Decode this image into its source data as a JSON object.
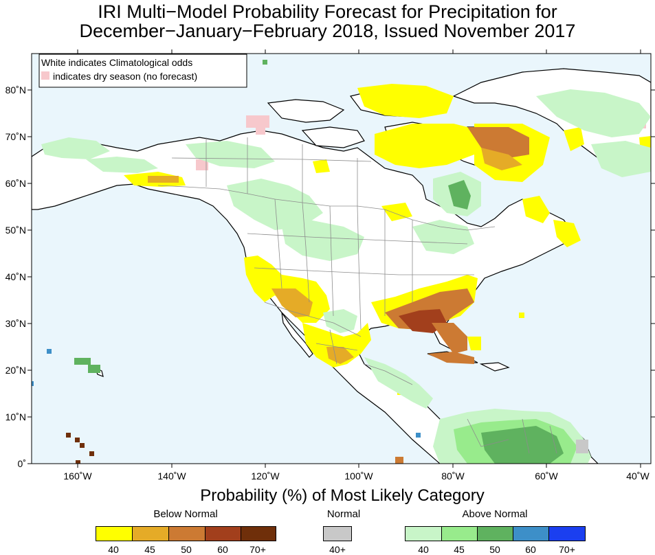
{
  "title": {
    "line1": "IRI Multi−Model Probability Forecast for Precipitation for",
    "line2": "December−January−February 2018, Issued November 2017"
  },
  "map": {
    "notes": {
      "line1": "White indicates Climatological odds",
      "line2": "indicates dry season (no forecast)"
    },
    "lat_labels": [
      "80˚N",
      "70˚N",
      "60˚N",
      "50˚N",
      "40˚N",
      "30˚N",
      "20˚N",
      "10˚N",
      "0˚"
    ],
    "lon_labels": [
      "160˚W",
      "140˚W",
      "120˚W",
      "100˚W",
      "80˚W",
      "60˚W",
      "40˚W"
    ],
    "colors": {
      "ocean": "#eaf6fc",
      "land": "#ffffff",
      "dry_season": "#f7c8cc",
      "coast": "#000000",
      "border": "#8c8c8c"
    }
  },
  "legend": {
    "title": "Probability (%) of Most Likely Category",
    "groups": [
      {
        "name": "Below Normal",
        "items": [
          {
            "label": "40",
            "color": "#ffff00"
          },
          {
            "label": "45",
            "color": "#e5ab27"
          },
          {
            "label": "50",
            "color": "#cc7a33"
          },
          {
            "label": "60",
            "color": "#a23f1c"
          },
          {
            "label": "70+",
            "color": "#6f2f0a"
          }
        ]
      },
      {
        "name": "Normal",
        "items": [
          {
            "label": "40+",
            "color": "#c8c8c8"
          }
        ]
      },
      {
        "name": "Above Normal",
        "items": [
          {
            "label": "40",
            "color": "#c8f5c8"
          },
          {
            "label": "45",
            "color": "#98eb8c"
          },
          {
            "label": "50",
            "color": "#5fb25f"
          },
          {
            "label": "60",
            "color": "#3d8fc8"
          },
          {
            "label": "70+",
            "color": "#1b3ff0"
          }
        ]
      }
    ]
  }
}
